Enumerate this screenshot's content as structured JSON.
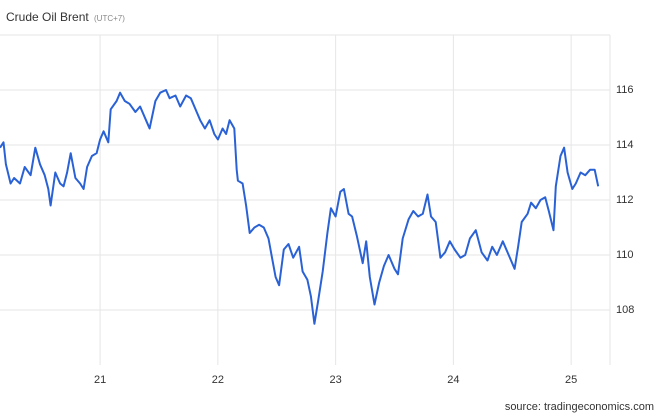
{
  "chart_data": {
    "type": "line",
    "title": "Crude Oil Brent",
    "subtitle": "(UTC+7)",
    "source": "source: tradingeconomics.com",
    "xlim": [
      20.15,
      25.33
    ],
    "xticks": [
      21,
      22,
      23,
      24,
      25
    ],
    "ylim": [
      106,
      118
    ],
    "yticks": [
      108,
      110,
      112,
      114,
      116
    ],
    "grid": true,
    "series": [
      {
        "color": "#2a62d6",
        "x": [
          20.15,
          20.18,
          20.2,
          20.24,
          20.27,
          20.32,
          20.36,
          20.41,
          20.45,
          20.49,
          20.53,
          20.56,
          20.58,
          20.62,
          20.66,
          20.69,
          20.72,
          20.75,
          20.79,
          20.83,
          20.86,
          20.89,
          20.93,
          20.97,
          21.0,
          21.03,
          21.07,
          21.09,
          21.14,
          21.17,
          21.21,
          21.25,
          21.3,
          21.34,
          21.39,
          21.42,
          21.47,
          21.51,
          21.56,
          21.59,
          21.64,
          21.68,
          21.73,
          21.77,
          21.82,
          21.85,
          21.89,
          21.93,
          21.97,
          22.0,
          22.04,
          22.07,
          22.1,
          22.14,
          22.16,
          22.17,
          22.21,
          22.24,
          22.27,
          22.31,
          22.35,
          22.39,
          22.43,
          22.46,
          22.49,
          22.52,
          22.56,
          22.6,
          22.64,
          22.69,
          22.72,
          22.76,
          22.79,
          22.82,
          22.85,
          22.89,
          22.93,
          22.96,
          23.0,
          23.04,
          23.07,
          23.11,
          23.14,
          23.18,
          23.23,
          23.26,
          23.29,
          23.33,
          23.37,
          23.41,
          23.45,
          23.5,
          23.53,
          23.57,
          23.62,
          23.66,
          23.7,
          23.74,
          23.78,
          23.81,
          23.85,
          23.89,
          23.93,
          23.97,
          24.01,
          24.06,
          24.1,
          24.14,
          24.19,
          24.24,
          24.29,
          24.33,
          24.37,
          24.42,
          24.47,
          24.52,
          24.55,
          24.58,
          24.63,
          24.66,
          24.7,
          24.74,
          24.78,
          24.81,
          24.85,
          24.87,
          24.91,
          24.94,
          24.97,
          25.01,
          25.04,
          25.08,
          25.12,
          25.16,
          25.2,
          25.23
        ],
        "values": [
          113.9,
          114.1,
          113.3,
          112.6,
          112.8,
          112.6,
          113.2,
          112.9,
          113.9,
          113.3,
          112.9,
          112.4,
          111.8,
          113.0,
          112.6,
          112.5,
          113.0,
          113.7,
          112.8,
          112.6,
          112.4,
          113.2,
          113.6,
          113.7,
          114.2,
          114.5,
          114.1,
          115.3,
          115.6,
          115.9,
          115.6,
          115.5,
          115.2,
          115.4,
          114.9,
          114.6,
          115.6,
          115.9,
          116.0,
          115.7,
          115.8,
          115.4,
          115.8,
          115.7,
          115.2,
          114.9,
          114.6,
          114.9,
          114.4,
          114.2,
          114.6,
          114.4,
          114.9,
          114.6,
          113.1,
          112.7,
          112.6,
          111.8,
          110.8,
          111.0,
          111.1,
          111.0,
          110.6,
          109.9,
          109.2,
          108.9,
          110.2,
          110.4,
          109.9,
          110.3,
          109.4,
          109.1,
          108.5,
          107.5,
          108.3,
          109.4,
          110.8,
          111.7,
          111.4,
          112.3,
          112.4,
          111.5,
          111.4,
          110.7,
          109.7,
          110.5,
          109.2,
          108.2,
          109.0,
          109.6,
          110.0,
          109.5,
          109.3,
          110.6,
          111.3,
          111.6,
          111.4,
          111.5,
          112.2,
          111.4,
          111.2,
          109.9,
          110.1,
          110.5,
          110.2,
          109.9,
          110.0,
          110.6,
          110.9,
          110.1,
          109.8,
          110.3,
          110.0,
          110.5,
          110.0,
          109.5,
          110.3,
          111.2,
          111.5,
          111.9,
          111.7,
          112.0,
          112.1,
          111.6,
          110.9,
          112.5,
          113.6,
          113.9,
          113.0,
          112.4,
          112.6,
          113.0,
          112.9,
          113.1,
          113.1,
          112.5
        ]
      }
    ]
  }
}
